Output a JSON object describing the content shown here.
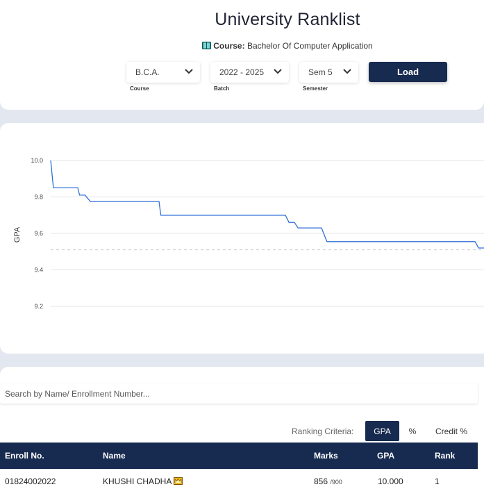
{
  "header": {
    "title": "University Ranklist",
    "course_label": "Course:",
    "course_name": "Bachelor Of Computer Application"
  },
  "filters": {
    "course": {
      "value": "B.C.A.",
      "label": "Course"
    },
    "batch": {
      "value": "2022 - 2025",
      "label": "Batch"
    },
    "semester": {
      "value": "Sem 5",
      "label": "Semester"
    },
    "load_label": "Load"
  },
  "chart_data": {
    "type": "line",
    "ylabel": "GPA",
    "xlabel": "",
    "ylim": [
      9.2,
      10.0
    ],
    "yticks": [
      "10.0",
      "9.8",
      "9.6",
      "9.4",
      "9.2"
    ],
    "grid": true,
    "reference_line": 9.51,
    "series": [
      {
        "color": "#2f6fd6",
        "x": [
          0,
          1.5,
          15,
          16,
          19,
          22,
          23,
          60,
          61,
          63,
          65,
          80,
          81,
          130,
          132,
          135,
          137,
          150,
          153,
          160,
          161,
          235,
          237,
          240
        ],
        "y": [
          10.0,
          9.85,
          9.85,
          9.81,
          9.81,
          9.775,
          9.775,
          9.775,
          9.7,
          9.7,
          9.7,
          9.7,
          9.7,
          9.7,
          9.66,
          9.66,
          9.63,
          9.63,
          9.555,
          9.555,
          9.555,
          9.555,
          9.52,
          9.52
        ]
      }
    ]
  },
  "search": {
    "placeholder": "Search by Name/ Enrollment Number..."
  },
  "ranking": {
    "label": "Ranking Criteria:",
    "options": [
      "GPA",
      "%",
      "Credit %"
    ],
    "active": "GPA"
  },
  "table": {
    "columns": [
      "Enroll No.",
      "Name",
      "Marks",
      "GPA",
      "Rank"
    ],
    "rows": [
      {
        "enroll": "01824002022",
        "name": "KHUSHI CHADHA",
        "marks": "856",
        "marks_total": "/900",
        "gpa": "10.000",
        "rank": "1"
      }
    ]
  },
  "colors": {
    "navy": "#172a4f",
    "line": "#2f6fd6",
    "crown": "#e5a00d"
  }
}
